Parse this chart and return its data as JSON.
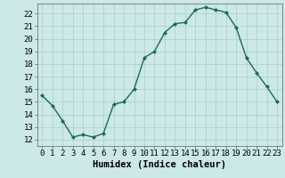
{
  "x": [
    0,
    1,
    2,
    3,
    4,
    5,
    6,
    7,
    8,
    9,
    10,
    11,
    12,
    13,
    14,
    15,
    16,
    17,
    18,
    19,
    20,
    21,
    22,
    23
  ],
  "y": [
    15.5,
    14.7,
    13.5,
    12.2,
    12.4,
    12.2,
    12.5,
    14.8,
    15.0,
    16.0,
    18.5,
    19.0,
    20.5,
    21.2,
    21.3,
    22.3,
    22.5,
    22.3,
    22.1,
    20.9,
    18.5,
    17.3,
    16.2,
    15.0
  ],
  "line_color": "#1a6b5a",
  "marker": "D",
  "marker_size": 2.0,
  "bg_color": "#cce8e8",
  "grid_color": "#aacccc",
  "xlabel": "Humidex (Indice chaleur)",
  "ylim": [
    11.5,
    22.8
  ],
  "xlim": [
    -0.5,
    23.5
  ],
  "yticks": [
    12,
    13,
    14,
    15,
    16,
    17,
    18,
    19,
    20,
    21,
    22
  ],
  "xticks": [
    0,
    1,
    2,
    3,
    4,
    5,
    6,
    7,
    8,
    9,
    10,
    11,
    12,
    13,
    14,
    15,
    16,
    17,
    18,
    19,
    20,
    21,
    22,
    23
  ],
  "xlabel_fontsize": 7.5,
  "tick_fontsize": 6.5,
  "linewidth": 1.0
}
